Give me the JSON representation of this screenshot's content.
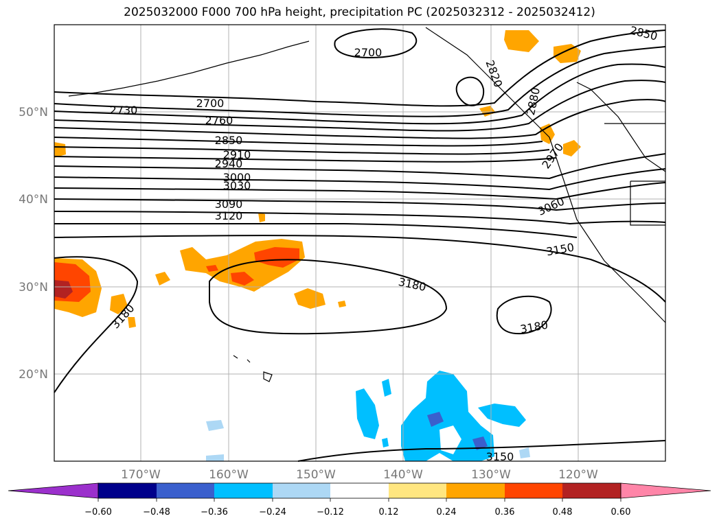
{
  "title": "2025032000 F000 700 hPa height, precipitation PC (2025032312 - 2025032412)",
  "map": {
    "lat_labels": [
      "50°N",
      "40°N",
      "30°N",
      "20°N"
    ],
    "lon_labels": [
      "170°W",
      "160°W",
      "150°W",
      "140°W",
      "130°W",
      "120°W"
    ],
    "contour_labels": [
      "2700",
      "2730",
      "2700",
      "2760",
      "2850",
      "2910",
      "2940",
      "3000",
      "3030",
      "3090",
      "3120",
      "2850",
      "2820",
      "2880",
      "2970",
      "3060",
      "3150",
      "3180",
      "3180",
      "3180",
      "3150"
    ]
  },
  "colorbar": {
    "ticks": [
      "−0.60",
      "−0.48",
      "−0.36",
      "−0.24",
      "−0.12",
      "0.12",
      "0.24",
      "0.36",
      "0.48",
      "0.60"
    ],
    "colors": [
      "#9b30cc",
      "#00008b",
      "#3a5fcd",
      "#00bfff",
      "#add8f5",
      "#ffffff",
      "#ffe680",
      "#ffa500",
      "#ff4500",
      "#b22222",
      "#ff85a8"
    ]
  }
}
